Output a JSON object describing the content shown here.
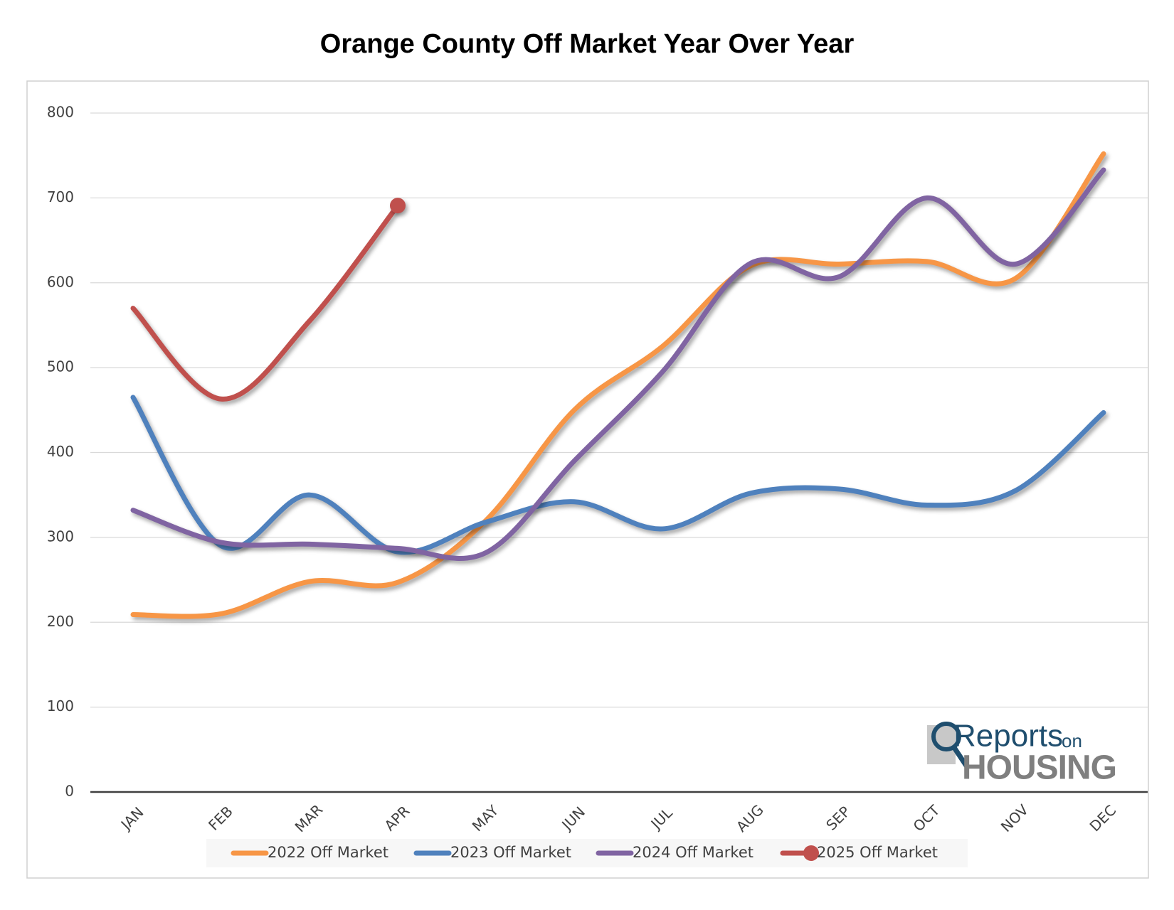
{
  "chart_data": {
    "type": "line",
    "title": "Orange County Off Market Year Over Year",
    "categories": [
      "JAN",
      "FEB",
      "MAR",
      "APR",
      "MAY",
      "JUN",
      "JUL",
      "AUG",
      "SEP",
      "OCT",
      "NOV",
      "DEC"
    ],
    "series": [
      {
        "name": "2022 Off Market",
        "color": "#f79646",
        "values": [
          209,
          210,
          248,
          247,
          320,
          450,
          525,
          620,
          622,
          625,
          605,
          752
        ]
      },
      {
        "name": "2023 Off Market",
        "color": "#4f81bd",
        "values": [
          465,
          290,
          350,
          283,
          318,
          342,
          310,
          352,
          357,
          338,
          355,
          447
        ]
      },
      {
        "name": "2024 Off Market",
        "color": "#8064a2",
        "values": [
          332,
          294,
          292,
          287,
          282,
          390,
          495,
          623,
          607,
          700,
          622,
          733
        ]
      },
      {
        "name": "2025 Off Market",
        "color": "#c0504d",
        "marker": "end",
        "values": [
          570,
          463,
          555,
          691,
          null,
          null,
          null,
          null,
          null,
          null,
          null,
          null
        ]
      }
    ],
    "ylim": [
      0,
      800
    ],
    "yticks": [
      0,
      100,
      200,
      300,
      400,
      500,
      600,
      700,
      800
    ],
    "grid": true,
    "legend": "bottom",
    "logo": {
      "brand": "Reports",
      "small": "on",
      "sub": "HOUSING"
    }
  }
}
